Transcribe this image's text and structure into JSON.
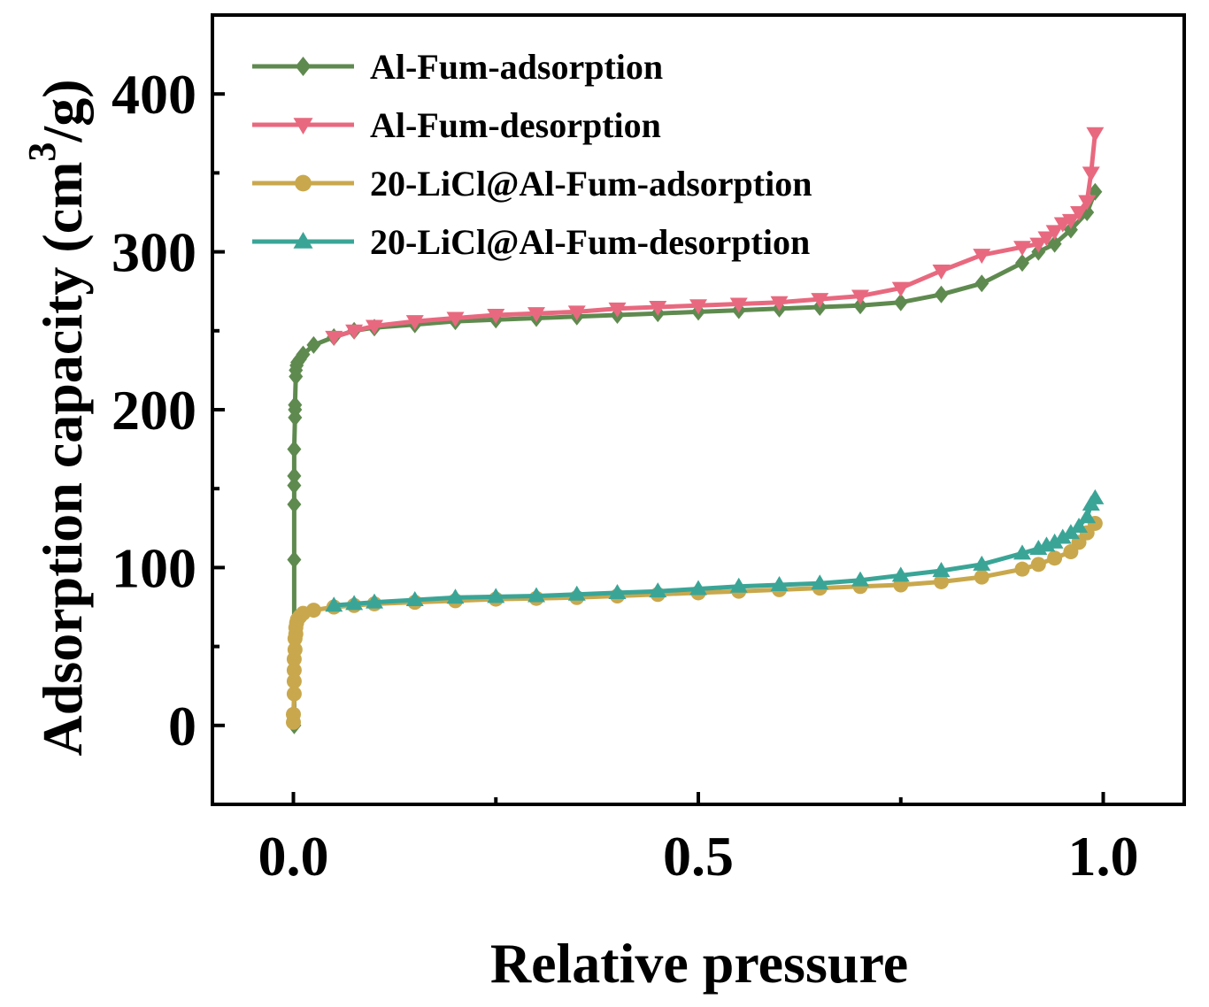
{
  "chart_data": {
    "type": "line",
    "title": "",
    "xlabel": "Relative pressure",
    "ylabel": "Adsorption capacity (cm",
    "ylabel_sup": "3",
    "ylabel_end": "/g)",
    "xlim": [
      -0.1,
      1.1
    ],
    "ylim": [
      -50,
      450
    ],
    "x_ticks": [
      0.0,
      0.5,
      1.0
    ],
    "x_tick_labels": [
      "0.0",
      "0.5",
      "1.0"
    ],
    "y_ticks": [
      0,
      100,
      200,
      300,
      400
    ],
    "y_tick_labels": [
      "0",
      "100",
      "200",
      "300",
      "400"
    ],
    "legend_position": "top-left",
    "series": [
      {
        "name": "Al-Fum-adsorption",
        "color": "#5f8a4f",
        "marker": "diamond",
        "x": [
          0.001,
          0.001,
          0.001,
          0.001,
          0.001,
          0.001,
          0.002,
          0.002,
          0.002,
          0.003,
          0.003,
          0.004,
          0.005,
          0.008,
          0.012,
          0.025,
          0.05,
          0.075,
          0.1,
          0.15,
          0.2,
          0.25,
          0.3,
          0.35,
          0.4,
          0.45,
          0.5,
          0.55,
          0.6,
          0.65,
          0.7,
          0.75,
          0.8,
          0.85,
          0.9,
          0.92,
          0.94,
          0.96,
          0.98,
          0.99
        ],
        "y": [
          0,
          105,
          140,
          152,
          158,
          175,
          195,
          200,
          203,
          221,
          225,
          228,
          230,
          232,
          235,
          241,
          246,
          250,
          252,
          254,
          256,
          257,
          258,
          259,
          260,
          261,
          262,
          263,
          264,
          265,
          266,
          268,
          273,
          280,
          293,
          300,
          305,
          314,
          325,
          338
        ]
      },
      {
        "name": "Al-Fum-desorption",
        "color": "#e8697f",
        "marker": "triangle-down",
        "x": [
          0.99,
          0.985,
          0.98,
          0.97,
          0.96,
          0.95,
          0.94,
          0.93,
          0.92,
          0.9,
          0.85,
          0.8,
          0.75,
          0.7,
          0.65,
          0.6,
          0.55,
          0.5,
          0.45,
          0.4,
          0.35,
          0.3,
          0.25,
          0.2,
          0.15,
          0.1,
          0.075,
          0.05
        ],
        "y": [
          375,
          350,
          332,
          325,
          320,
          318,
          313,
          309,
          305,
          303,
          298,
          288,
          277,
          272,
          270,
          268,
          267,
          266,
          265,
          264,
          262,
          261,
          260,
          258,
          256,
          253,
          250,
          246
        ]
      },
      {
        "name": "20-LiCl@Al-Fum-adsorption",
        "color": "#c9a84d",
        "marker": "circle",
        "x": [
          0.0,
          0.0,
          0.001,
          0.001,
          0.001,
          0.001,
          0.002,
          0.002,
          0.003,
          0.003,
          0.004,
          0.005,
          0.008,
          0.012,
          0.025,
          0.05,
          0.075,
          0.1,
          0.15,
          0.2,
          0.25,
          0.3,
          0.35,
          0.4,
          0.45,
          0.5,
          0.55,
          0.6,
          0.65,
          0.7,
          0.75,
          0.8,
          0.85,
          0.9,
          0.92,
          0.94,
          0.96,
          0.97,
          0.98,
          0.99
        ],
        "y": [
          2,
          7,
          20,
          28,
          35,
          42,
          48,
          55,
          58,
          62,
          65,
          67,
          69,
          71,
          73,
          75,
          76,
          77,
          78,
          79,
          80,
          80.5,
          81,
          82,
          83,
          84,
          85,
          86,
          87,
          88,
          89,
          91,
          94,
          99,
          102,
          106,
          110,
          116,
          122,
          128
        ]
      },
      {
        "name": "20-LiCl@Al-Fum-desorption",
        "color": "#3aa597",
        "marker": "triangle-up",
        "x": [
          0.99,
          0.985,
          0.98,
          0.97,
          0.96,
          0.95,
          0.94,
          0.93,
          0.92,
          0.9,
          0.85,
          0.8,
          0.75,
          0.7,
          0.65,
          0.6,
          0.55,
          0.5,
          0.45,
          0.4,
          0.35,
          0.3,
          0.25,
          0.2,
          0.15,
          0.1,
          0.075,
          0.05
        ],
        "y": [
          144,
          140,
          132,
          126,
          122,
          119,
          116,
          114,
          112,
          109,
          102,
          98,
          95,
          92,
          90,
          89,
          88,
          86.5,
          85,
          84,
          83,
          82,
          81.5,
          81,
          79.5,
          78,
          77,
          76
        ]
      }
    ]
  }
}
